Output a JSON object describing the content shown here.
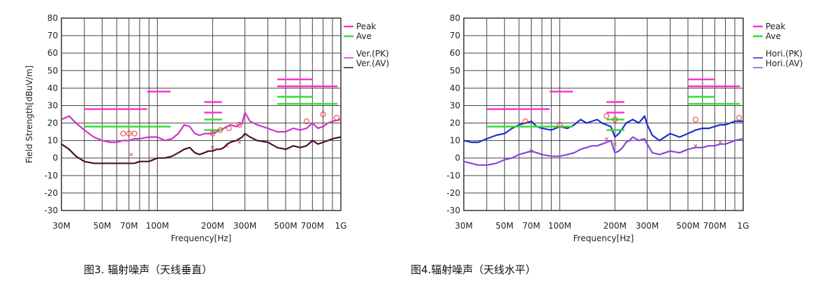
{
  "chart_data": [
    {
      "type": "line",
      "title": "",
      "xlabel": "Frequency[Hz]",
      "ylabel": "Field Strength[dBuV/m]",
      "x_scale": "log",
      "xlim_hz": [
        30000000,
        1000000000
      ],
      "ylim": [
        -30,
        80
      ],
      "y_ticks": [
        80,
        70,
        60,
        50,
        40,
        30,
        20,
        10,
        0,
        -10,
        -20,
        -30
      ],
      "x_tick_labels": [
        {
          "label": "30M",
          "hz": 30000000
        },
        {
          "label": "50M",
          "hz": 50000000
        },
        {
          "label": "70M",
          "hz": 70000000
        },
        {
          "label": "100M",
          "hz": 100000000
        },
        {
          "label": "200M",
          "hz": 200000000
        },
        {
          "label": "300M",
          "hz": 300000000
        },
        {
          "label": "500M",
          "hz": 500000000
        },
        {
          "label": "700M",
          "hz": 700000000
        },
        {
          "label": "1G",
          "hz": 1000000000
        }
      ],
      "grid": true,
      "legend_position": "right",
      "legend": [
        {
          "label": "Peak",
          "color": "#ff33cc"
        },
        {
          "label": "Ave",
          "color": "#33dd33"
        },
        {
          "label": "Ver.(PK)",
          "color": "#cc33cc"
        },
        {
          "label": "Ver.(AV)",
          "color": "#4a1030"
        }
      ],
      "limits": {
        "peak": [
          {
            "x1": 40000000,
            "x2": 88000000,
            "y": 28
          },
          {
            "x1": 88000000,
            "x2": 118000000,
            "y": 38
          },
          {
            "x1": 180000000,
            "x2": 225000000,
            "y": 32
          },
          {
            "x1": 180000000,
            "x2": 225000000,
            "y": 26
          },
          {
            "x1": 450000000,
            "x2": 700000000,
            "y": 45
          },
          {
            "x1": 450000000,
            "x2": 960000000,
            "y": 41
          }
        ],
        "ave": [
          {
            "x1": 40000000,
            "x2": 118000000,
            "y": 18
          },
          {
            "x1": 180000000,
            "x2": 225000000,
            "y": 22
          },
          {
            "x1": 180000000,
            "x2": 225000000,
            "y": 16
          },
          {
            "x1": 450000000,
            "x2": 700000000,
            "y": 35
          },
          {
            "x1": 450000000,
            "x2": 960000000,
            "y": 31
          }
        ]
      },
      "series": [
        {
          "name": "Ver.(PK)",
          "color": "#cc33cc",
          "x": [
            30000000,
            33000000,
            36000000,
            40000000,
            45000000,
            50000000,
            55000000,
            60000000,
            65000000,
            70000000,
            75000000,
            80000000,
            90000000,
            100000000,
            110000000,
            120000000,
            130000000,
            140000000,
            150000000,
            160000000,
            170000000,
            180000000,
            190000000,
            200000000,
            210000000,
            220000000,
            230000000,
            240000000,
            250000000,
            270000000,
            290000000,
            300000000,
            320000000,
            350000000,
            400000000,
            450000000,
            500000000,
            550000000,
            600000000,
            650000000,
            700000000,
            750000000,
            800000000,
            850000000,
            900000000,
            1000000000
          ],
          "values": [
            22,
            24,
            20,
            16,
            12,
            10,
            9,
            9,
            10,
            10,
            11,
            11,
            12,
            12,
            10,
            11,
            14,
            19,
            18,
            14,
            13,
            14,
            14,
            14,
            15,
            16,
            17,
            18,
            19,
            18,
            20,
            26,
            21,
            19,
            17,
            15,
            15,
            17,
            16,
            17,
            20,
            17,
            18,
            20,
            21,
            22
          ]
        },
        {
          "name": "Ver.(AV)",
          "color": "#4a1030",
          "x": [
            30000000,
            33000000,
            36000000,
            40000000,
            45000000,
            50000000,
            55000000,
            60000000,
            65000000,
            70000000,
            75000000,
            80000000,
            90000000,
            100000000,
            110000000,
            120000000,
            130000000,
            140000000,
            150000000,
            160000000,
            170000000,
            180000000,
            190000000,
            200000000,
            210000000,
            220000000,
            230000000,
            240000000,
            250000000,
            270000000,
            290000000,
            300000000,
            320000000,
            350000000,
            400000000,
            450000000,
            500000000,
            550000000,
            600000000,
            650000000,
            700000000,
            750000000,
            800000000,
            850000000,
            900000000,
            1000000000
          ],
          "values": [
            8,
            5,
            1,
            -2,
            -3,
            -3,
            -3,
            -3,
            -3,
            -3,
            -3,
            -2,
            -2,
            0,
            0,
            1,
            3,
            5,
            6,
            3,
            2,
            3,
            4,
            4,
            5,
            5,
            6,
            8,
            9,
            10,
            12,
            14,
            12,
            10,
            9,
            6,
            5,
            7,
            6,
            7,
            10,
            8,
            9,
            10,
            11,
            12
          ]
        }
      ],
      "markers": [
        {
          "series": "Ver.(PK)",
          "x": [
            65000000,
            70000000,
            75000000,
            200000000,
            220000000,
            245000000,
            280000000,
            650000000,
            800000000,
            950000000
          ],
          "values": [
            14,
            14,
            14,
            14,
            16,
            17,
            19,
            21,
            25,
            23
          ]
        },
        {
          "series": "Ver.(AV)",
          "x": [
            72000000,
            200000000,
            240000000,
            280000000
          ],
          "values": [
            2,
            6,
            7,
            9
          ]
        }
      ],
      "caption": "图3. 辐射噪声（天线垂直）"
    },
    {
      "type": "line",
      "title": "",
      "xlabel": "Frequency[Hz]",
      "ylabel": "",
      "x_scale": "log",
      "xlim_hz": [
        30000000,
        1000000000
      ],
      "ylim": [
        -30,
        80
      ],
      "y_ticks": [
        80,
        70,
        60,
        50,
        40,
        30,
        20,
        10,
        0,
        -10,
        -20,
        -30
      ],
      "x_tick_labels": [
        {
          "label": "30M",
          "hz": 30000000
        },
        {
          "label": "50M",
          "hz": 50000000
        },
        {
          "label": "70M",
          "hz": 70000000
        },
        {
          "label": "100M",
          "hz": 100000000
        },
        {
          "label": "200M",
          "hz": 200000000
        },
        {
          "label": "300M",
          "hz": 300000000
        },
        {
          "label": "500M",
          "hz": 500000000
        },
        {
          "label": "700M",
          "hz": 700000000
        },
        {
          "label": "1G",
          "hz": 1000000000
        }
      ],
      "grid": true,
      "legend_position": "right",
      "legend": [
        {
          "label": "Peak",
          "color": "#ff33cc"
        },
        {
          "label": "Ave",
          "color": "#33dd33"
        },
        {
          "label": "Hori.(PK)",
          "color": "#1a2fcc"
        },
        {
          "label": "Hori.(AV)",
          "color": "#8844dd"
        }
      ],
      "limits": {
        "peak": [
          {
            "x1": 40000000,
            "x2": 88000000,
            "y": 28
          },
          {
            "x1": 88000000,
            "x2": 118000000,
            "y": 38
          },
          {
            "x1": 180000000,
            "x2": 225000000,
            "y": 32
          },
          {
            "x1": 180000000,
            "x2": 225000000,
            "y": 26
          },
          {
            "x1": 500000000,
            "x2": 700000000,
            "y": 45
          },
          {
            "x1": 500000000,
            "x2": 960000000,
            "y": 41
          }
        ],
        "ave": [
          {
            "x1": 40000000,
            "x2": 118000000,
            "y": 18
          },
          {
            "x1": 180000000,
            "x2": 225000000,
            "y": 22
          },
          {
            "x1": 180000000,
            "x2": 225000000,
            "y": 16
          },
          {
            "x1": 500000000,
            "x2": 700000000,
            "y": 35
          },
          {
            "x1": 500000000,
            "x2": 960000000,
            "y": 31
          }
        ]
      },
      "series": [
        {
          "name": "Hori.(PK)",
          "color": "#1a2fcc",
          "x": [
            30000000,
            33000000,
            36000000,
            40000000,
            45000000,
            50000000,
            55000000,
            60000000,
            65000000,
            70000000,
            75000000,
            80000000,
            90000000,
            100000000,
            110000000,
            120000000,
            130000000,
            140000000,
            150000000,
            160000000,
            170000000,
            180000000,
            190000000,
            200000000,
            210000000,
            220000000,
            230000000,
            240000000,
            250000000,
            270000000,
            290000000,
            300000000,
            320000000,
            350000000,
            400000000,
            450000000,
            500000000,
            550000000,
            600000000,
            650000000,
            700000000,
            750000000,
            800000000,
            850000000,
            900000000,
            1000000000
          ],
          "values": [
            10,
            9,
            9,
            11,
            13,
            14,
            17,
            19,
            20,
            21,
            18,
            17,
            16,
            18,
            17,
            19,
            22,
            20,
            21,
            22,
            20,
            19,
            18,
            12,
            14,
            17,
            20,
            21,
            22,
            20,
            24,
            19,
            13,
            10,
            14,
            12,
            14,
            16,
            17,
            17,
            18,
            19,
            19,
            20,
            21,
            21
          ]
        },
        {
          "name": "Hori.(AV)",
          "color": "#8844dd",
          "x": [
            30000000,
            33000000,
            36000000,
            40000000,
            45000000,
            50000000,
            55000000,
            60000000,
            65000000,
            70000000,
            75000000,
            80000000,
            90000000,
            100000000,
            110000000,
            120000000,
            130000000,
            140000000,
            150000000,
            160000000,
            170000000,
            180000000,
            190000000,
            200000000,
            210000000,
            220000000,
            230000000,
            240000000,
            250000000,
            270000000,
            290000000,
            300000000,
            320000000,
            350000000,
            400000000,
            450000000,
            500000000,
            550000000,
            600000000,
            650000000,
            700000000,
            750000000,
            800000000,
            850000000,
            900000000,
            1000000000
          ],
          "values": [
            -2,
            -3,
            -4,
            -4,
            -3,
            -1,
            0,
            2,
            3,
            4,
            3,
            2,
            1,
            1,
            2,
            3,
            5,
            6,
            7,
            7,
            8,
            9,
            10,
            3,
            4,
            6,
            9,
            10,
            12,
            10,
            11,
            8,
            3,
            2,
            4,
            3,
            5,
            6,
            6,
            7,
            7,
            8,
            8,
            9,
            10,
            11
          ]
        }
      ],
      "markers": [
        {
          "series": "Hori.(PK)",
          "x": [
            65000000,
            100000000,
            180000000,
            200000000,
            550000000,
            950000000
          ],
          "values": [
            21,
            19,
            24,
            22,
            22,
            23
          ]
        },
        {
          "series": "Hori.(AV)",
          "x": [
            70000000,
            180000000,
            200000000,
            550000000,
            750000000
          ],
          "values": [
            4,
            11,
            8,
            7,
            9
          ]
        }
      ],
      "caption": "图4.辐射噪声（天线水平）"
    }
  ]
}
